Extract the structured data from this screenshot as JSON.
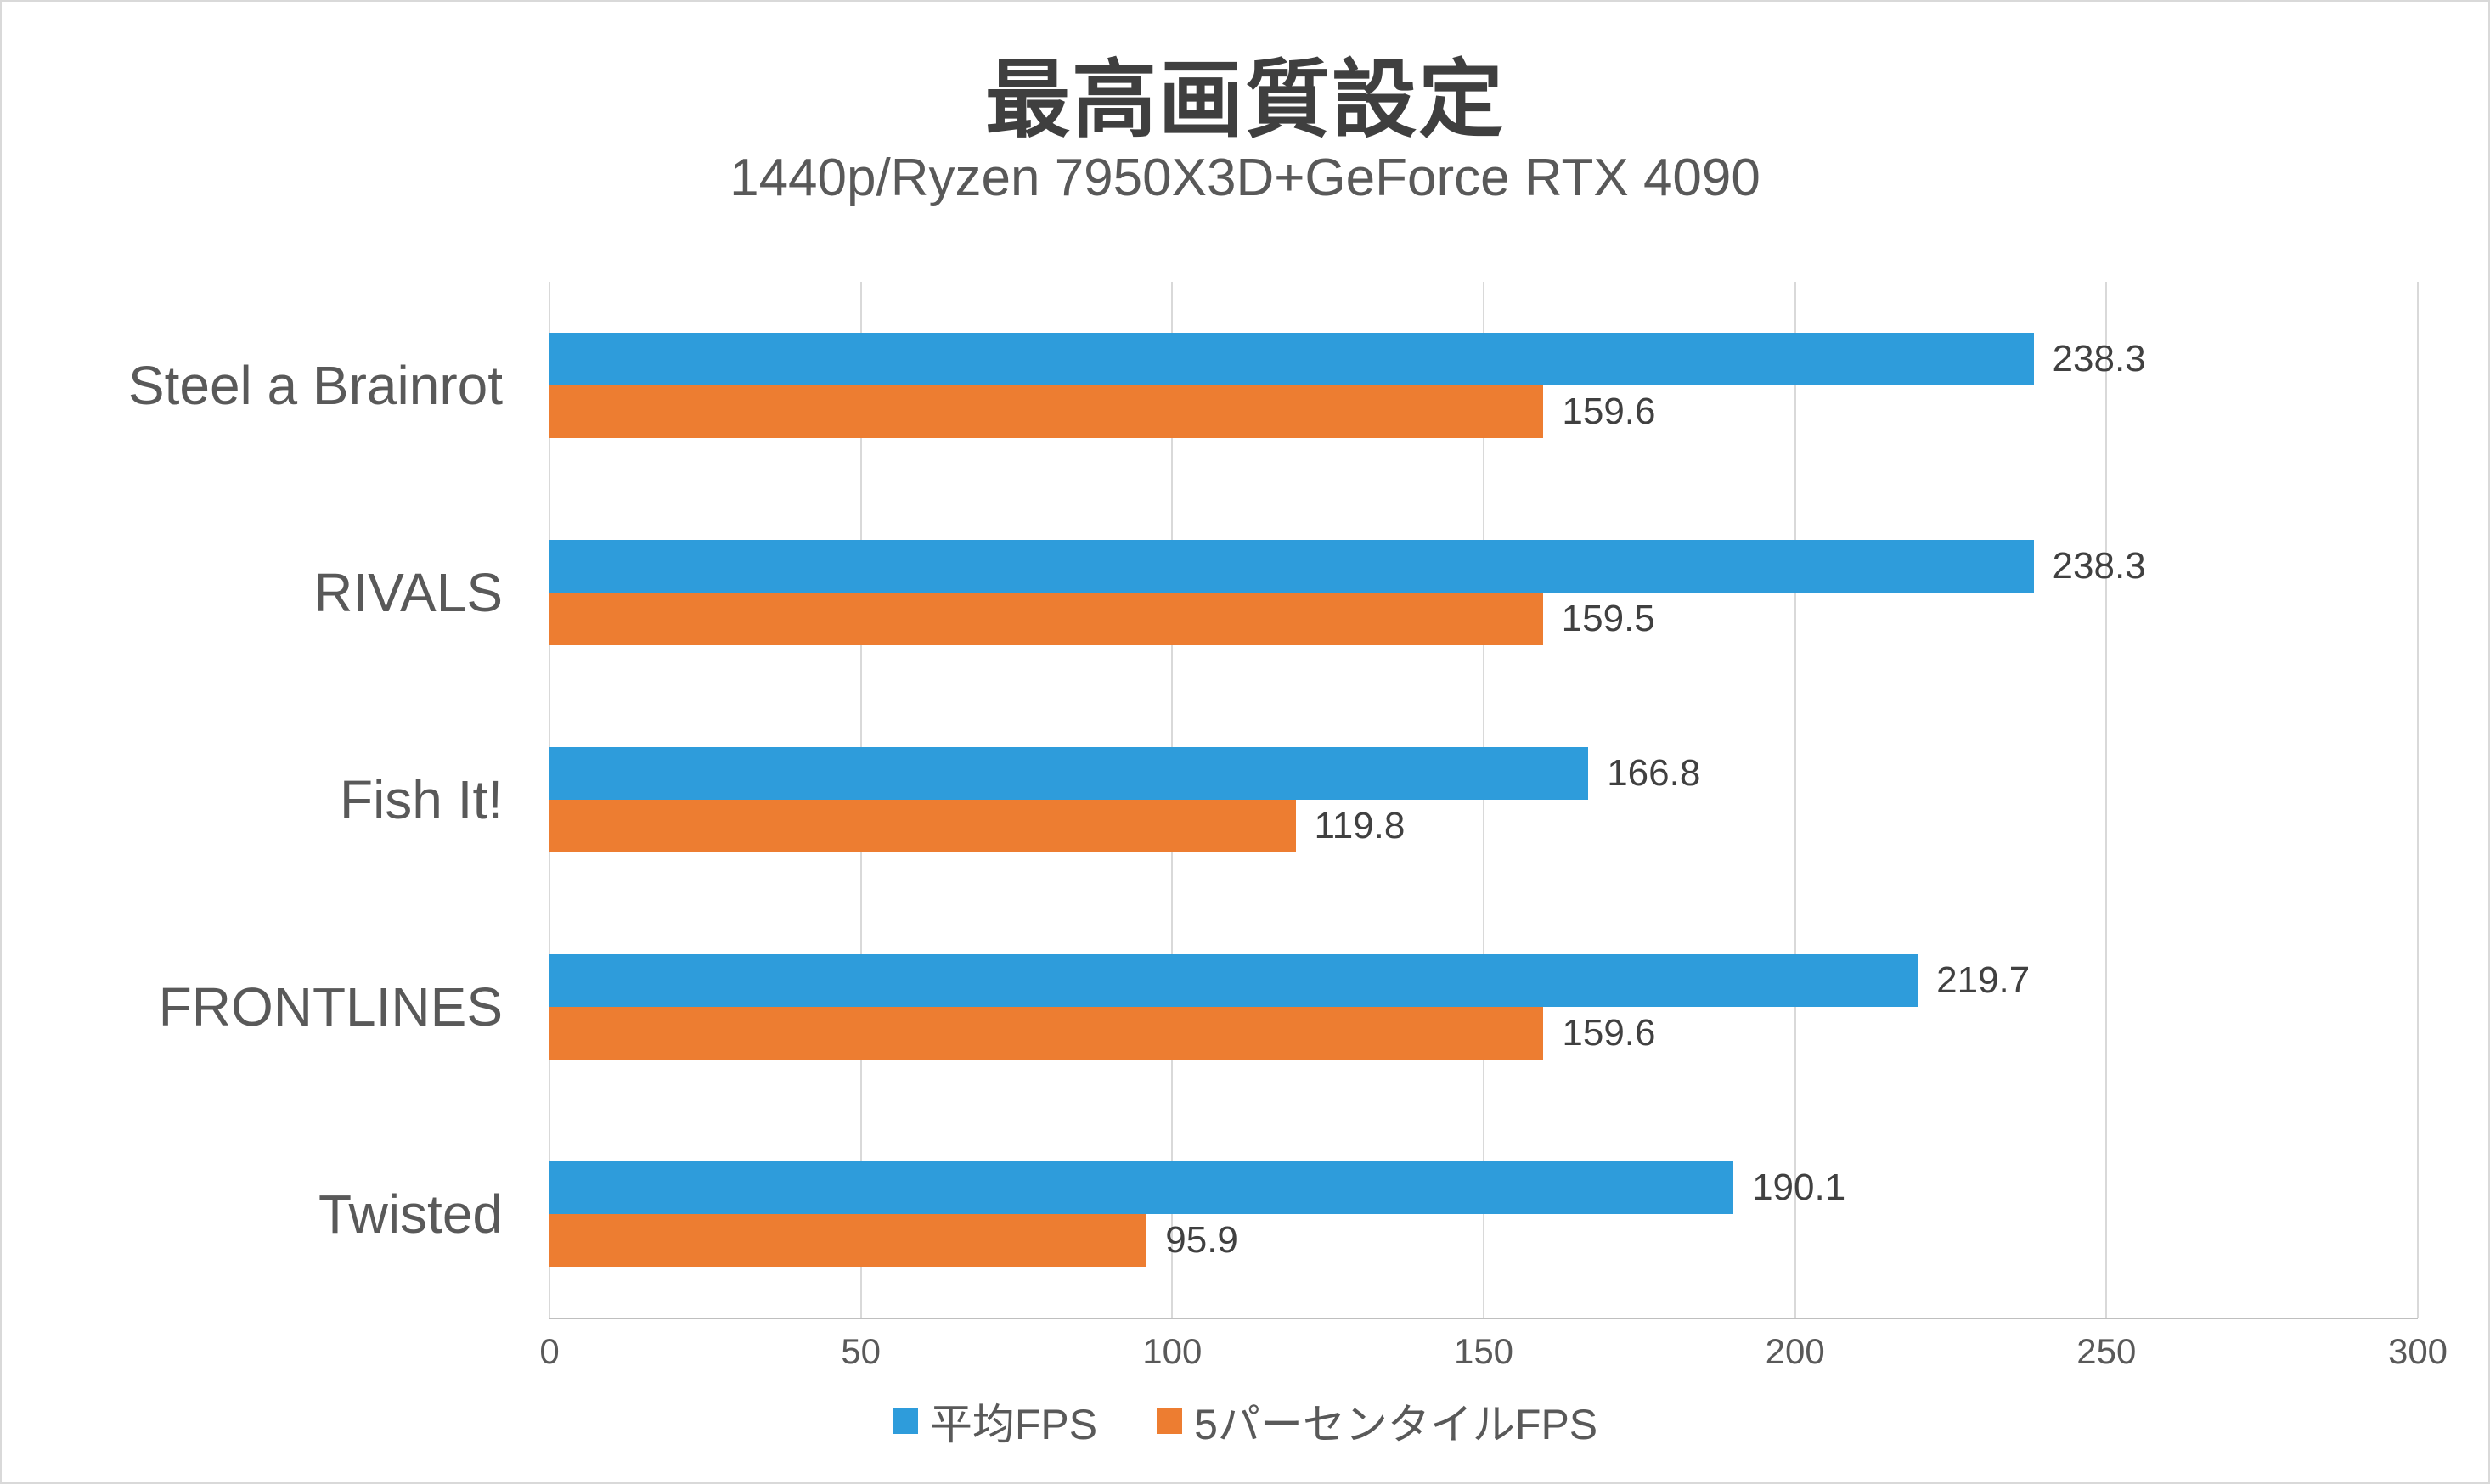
{
  "chart_data": {
    "type": "bar",
    "orientation": "horizontal",
    "title": "最高画質設定",
    "subtitle": "1440p/Ryzen 7950X3D+GeForce RTX 4090",
    "categories": [
      "Steel a Brainrot",
      "RIVALS",
      "Fish It!",
      "FRONTLINES",
      "Twisted"
    ],
    "series": [
      {
        "name": "平均FPS",
        "color": "#2E9CDB",
        "values": [
          238.3,
          238.3,
          166.8,
          219.7,
          190.1
        ]
      },
      {
        "name": "5パーセンタイルFPS",
        "color": "#ED7D31",
        "values": [
          159.6,
          159.5,
          119.8,
          159.6,
          95.9
        ]
      }
    ],
    "xlabel": "",
    "ylabel": "",
    "xlim": [
      0,
      300
    ],
    "xticks": [
      0,
      50,
      100,
      150,
      200,
      250,
      300
    ],
    "grid": true,
    "legend_position": "bottom",
    "colors": {
      "title": "#3f3f3f",
      "subtitle": "#595959",
      "gridline": "#d9d9d9",
      "axis_line": "#bfbfbf",
      "value_label": "#404040"
    }
  }
}
